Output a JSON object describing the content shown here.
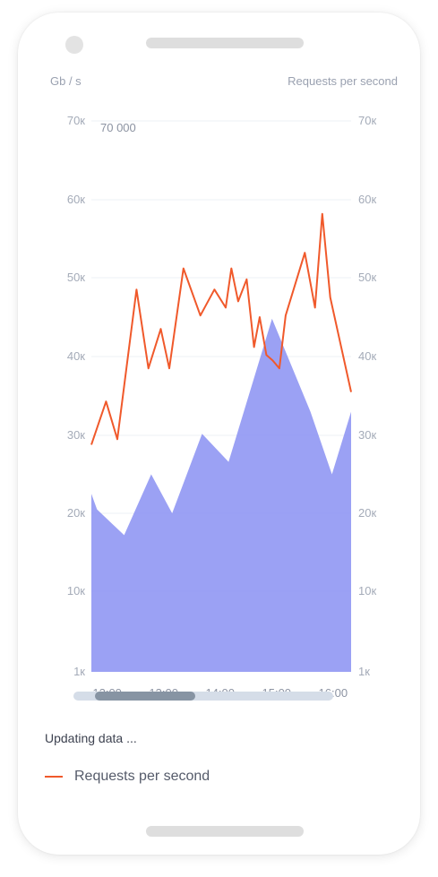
{
  "status_text": "Updating data ...",
  "legend": {
    "label": "Requests per second",
    "color": "#f0592b"
  },
  "annotation": "70 000",
  "chart_data": {
    "type": "area",
    "ylabel_left": "Gb / s",
    "ylabel_right": "Requests per second",
    "y_ticks": [
      "1к",
      "10к",
      "20к",
      "30к",
      "40к",
      "50к",
      "60к",
      "70к"
    ],
    "x_ticks": [
      "12:00",
      "13:00",
      "14:00",
      "15:00",
      "16:00"
    ],
    "xlim": [
      11.72,
      16.32
    ],
    "grid": true,
    "series": [
      {
        "kind": "area",
        "color": "#8d94f2",
        "x": [
          11.72,
          11.82,
          12.3,
          12.78,
          13.15,
          13.68,
          14.15,
          14.92,
          15.6,
          15.98,
          16.32
        ],
        "y": [
          22.5,
          20.5,
          17.2,
          25,
          20,
          30.2,
          26.6,
          44.8,
          33,
          25,
          33
        ]
      },
      {
        "name": "Requests per second",
        "kind": "line",
        "color": "#f0592b",
        "x": [
          11.72,
          11.98,
          12.18,
          12.52,
          12.73,
          12.95,
          13.1,
          13.35,
          13.65,
          13.9,
          14.1,
          14.2,
          14.32,
          14.47,
          14.6,
          14.7,
          14.82,
          14.93,
          15.05,
          15.16,
          15.5,
          15.68,
          15.81,
          15.95,
          16.32
        ],
        "y": [
          28.8,
          34.3,
          29.5,
          48.5,
          38.5,
          43.5,
          38.5,
          51.2,
          45.2,
          48.5,
          46.2,
          51.2,
          47,
          49.8,
          41.2,
          45,
          40.2,
          39.5,
          38.5,
          45.2,
          53.2,
          46.2,
          58.2,
          47.5,
          35.5
        ]
      }
    ]
  }
}
